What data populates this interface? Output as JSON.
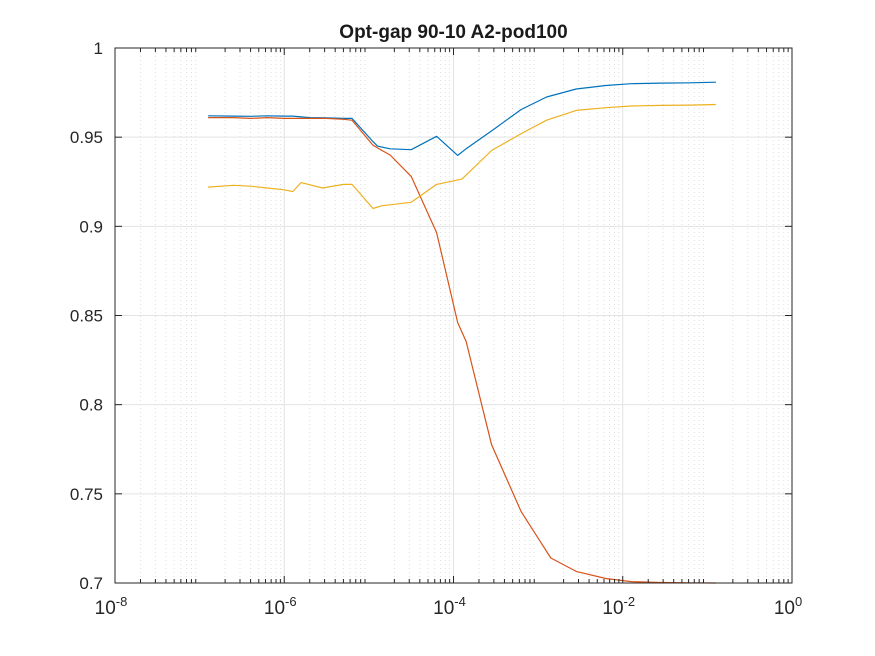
{
  "chart_data": {
    "type": "line",
    "title": "Opt-gap 90-10 A2-pod100",
    "xlabel": "",
    "ylabel": "",
    "xscale": "log",
    "xlim": [
      1e-08,
      1
    ],
    "ylim": [
      0.7,
      1
    ],
    "grid": true,
    "minor_grid": true,
    "xticks": [
      {
        "base": "10",
        "exp": "-8",
        "value": 1e-08
      },
      {
        "base": "10",
        "exp": "-6",
        "value": 1e-06
      },
      {
        "base": "10",
        "exp": "-4",
        "value": 0.0001
      },
      {
        "base": "10",
        "exp": "-2",
        "value": 0.01
      },
      {
        "base": "10",
        "exp": "0",
        "value": 1
      }
    ],
    "yticks": [
      "0.7",
      "0.75",
      "0.8",
      "0.85",
      "0.9",
      "0.95",
      "1"
    ],
    "series": [
      {
        "color": "#0072BD",
        "x": [
          1.26e-07,
          2.51e-07,
          3.98e-07,
          6.31e-07,
          1e-06,
          1.26e-06,
          2e-06,
          3.16e-06,
          5.01e-06,
          6.31e-06,
          1.12e-05,
          1.26e-05,
          1.78e-05,
          3.16e-05,
          6.31e-05,
          0.000112,
          0.000141,
          0.000282,
          0.000631,
          0.00126,
          0.00282,
          0.00631,
          0.0126,
          0.0282,
          0.0631,
          0.126
        ],
        "y": [
          0.962,
          0.9618,
          0.9617,
          0.962,
          0.9618,
          0.9618,
          0.961,
          0.9608,
          0.9605,
          0.9605,
          0.9475,
          0.945,
          0.9435,
          0.943,
          0.9505,
          0.9398,
          0.9435,
          0.9535,
          0.9655,
          0.9725,
          0.977,
          0.979,
          0.98,
          0.9803,
          0.9805,
          0.9808
        ]
      },
      {
        "color": "#D95319",
        "x": [
          1.26e-07,
          2.51e-07,
          3.98e-07,
          6.31e-07,
          1e-06,
          1.26e-06,
          2e-06,
          3.16e-06,
          5.01e-06,
          6.31e-06,
          1.12e-05,
          1.26e-05,
          1.78e-05,
          3.16e-05,
          6.31e-05,
          0.000112,
          0.000141,
          0.000282,
          0.000631,
          0.00112,
          0.00141,
          0.00282,
          0.00631,
          0.0126,
          0.0282,
          0.0631,
          0.126
        ],
        "y": [
          0.961,
          0.961,
          0.9605,
          0.961,
          0.9605,
          0.9605,
          0.9605,
          0.9605,
          0.96,
          0.9595,
          0.9455,
          0.944,
          0.94,
          0.928,
          0.8965,
          0.846,
          0.8355,
          0.7775,
          0.74,
          0.7215,
          0.714,
          0.7065,
          0.7025,
          0.7008,
          0.7003,
          0.7001,
          0.7
        ]
      },
      {
        "color": "#EDB120",
        "x": [
          1.26e-07,
          2.51e-07,
          3.98e-07,
          6.31e-07,
          1e-06,
          1.26e-06,
          1.58e-06,
          2.82e-06,
          5.01e-06,
          6.31e-06,
          1.12e-05,
          1.41e-05,
          3.16e-05,
          6.31e-05,
          0.000126,
          0.000282,
          0.000631,
          0.00126,
          0.00282,
          0.00631,
          0.0126,
          0.0282,
          0.0631,
          0.126
        ],
        "y": [
          0.922,
          0.923,
          0.9225,
          0.9215,
          0.9205,
          0.9195,
          0.9245,
          0.9215,
          0.9235,
          0.9235,
          0.91,
          0.9115,
          0.9135,
          0.9235,
          0.9265,
          0.9425,
          0.952,
          0.9595,
          0.965,
          0.9665,
          0.9675,
          0.9678,
          0.968,
          0.9683
        ]
      }
    ]
  }
}
